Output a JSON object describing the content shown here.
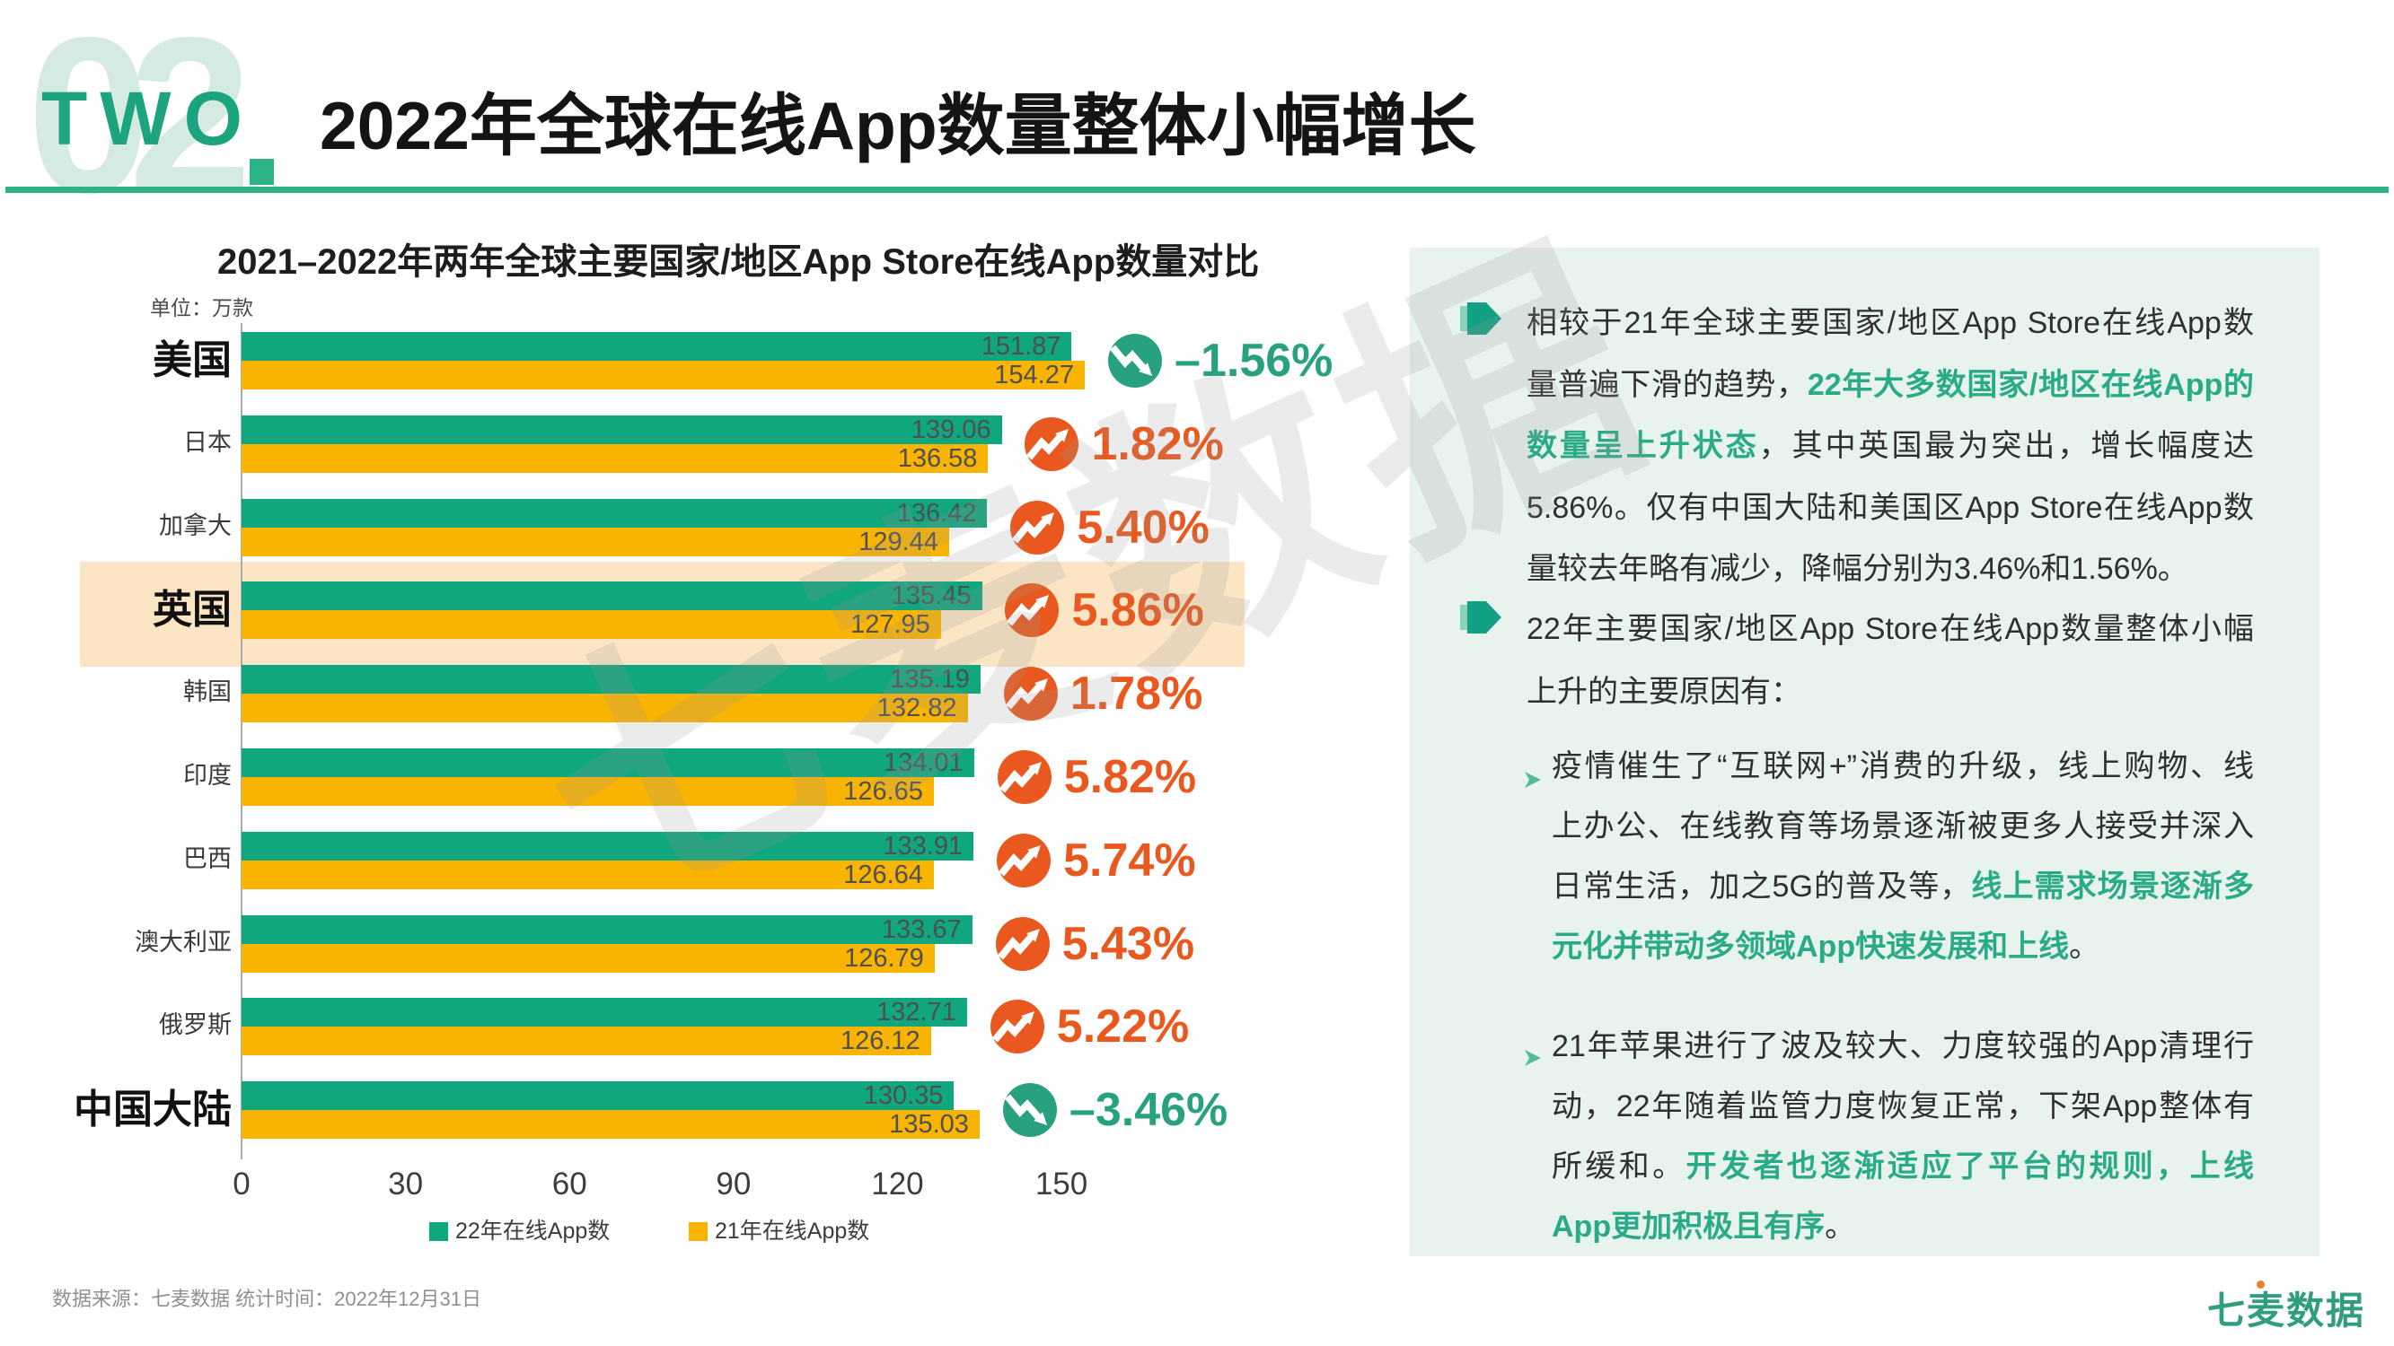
{
  "header": {
    "section_number": "02",
    "section_word": "TWO",
    "title": "2022年全球在线App数量整体小幅增长",
    "accent_color": "#2eb189"
  },
  "watermark": {
    "text": "七麦数据"
  },
  "chart": {
    "title": "2021–2022年两年全球主要国家/地区App Store在线App数量对比",
    "unit_label": "单位：万款",
    "x_ticks": [
      "0",
      "30",
      "60",
      "90",
      "120",
      "150"
    ],
    "legend": [
      {
        "label": "22年在线App数",
        "color": "#10a67e"
      },
      {
        "label": "21年在线App数",
        "color": "#f9b301"
      }
    ],
    "bar_color_2022": "#10a67e",
    "bar_color_2021": "#f9b301",
    "up_color": "#e9591f",
    "down_color": "#28a181",
    "highlight_color": "#fbe5c5",
    "rows": [
      {
        "country": "美国",
        "bold": true,
        "v22": "151.87",
        "v21": "154.27",
        "change": "–1.56%",
        "dir": "down",
        "highlight": false
      },
      {
        "country": "日本",
        "bold": false,
        "v22": "139.06",
        "v21": "136.58",
        "change": "1.82%",
        "dir": "up",
        "highlight": false
      },
      {
        "country": "加拿大",
        "bold": false,
        "v22": "136.42",
        "v21": "129.44",
        "change": "5.40%",
        "dir": "up",
        "highlight": false
      },
      {
        "country": "英国",
        "bold": true,
        "v22": "135.45",
        "v21": "127.95",
        "change": "5.86%",
        "dir": "up",
        "highlight": true
      },
      {
        "country": "韩国",
        "bold": false,
        "v22": "135.19",
        "v21": "132.82",
        "change": "1.78%",
        "dir": "up",
        "highlight": false
      },
      {
        "country": "印度",
        "bold": false,
        "v22": "134.01",
        "v21": "126.65",
        "change": "5.82%",
        "dir": "up",
        "highlight": false
      },
      {
        "country": "巴西",
        "bold": false,
        "v22": "133.91",
        "v21": "126.64",
        "change": "5.74%",
        "dir": "up",
        "highlight": false
      },
      {
        "country": "澳大利亚",
        "bold": false,
        "v22": "133.67",
        "v21": "126.79",
        "change": "5.43%",
        "dir": "up",
        "highlight": false
      },
      {
        "country": "俄罗斯",
        "bold": false,
        "v22": "132.71",
        "v21": "126.12",
        "change": "5.22%",
        "dir": "up",
        "highlight": false
      },
      {
        "country": "中国大陆",
        "bold": true,
        "v22": "130.35",
        "v21": "135.03",
        "change": "–3.46%",
        "dir": "down",
        "highlight": false
      }
    ]
  },
  "chart_data": {
    "type": "bar",
    "orientation": "horizontal",
    "title": "2021–2022年两年全球主要国家/地区App Store在线App数量对比",
    "unit": "万款",
    "categories": [
      "美国",
      "日本",
      "加拿大",
      "英国",
      "韩国",
      "印度",
      "巴西",
      "澳大利亚",
      "俄罗斯",
      "中国大陆"
    ],
    "series": [
      {
        "name": "22年在线App数",
        "color": "#10a67e",
        "values": [
          151.87,
          139.06,
          136.42,
          135.45,
          135.19,
          134.01,
          133.91,
          133.67,
          132.71,
          130.35
        ]
      },
      {
        "name": "21年在线App数",
        "color": "#f9b301",
        "values": [
          154.27,
          136.58,
          129.44,
          127.95,
          132.82,
          126.65,
          126.64,
          126.79,
          126.12,
          135.03
        ]
      }
    ],
    "change_percent": [
      -1.56,
      1.82,
      5.4,
      5.86,
      1.78,
      5.82,
      5.74,
      5.43,
      5.22,
      -3.46
    ],
    "xlabel": "",
    "ylabel": "",
    "xlim": [
      0,
      165
    ],
    "grid": false,
    "legend_position": "bottom",
    "highlighted_category": "英国"
  },
  "panel": {
    "paragraphs": [
      {
        "marker": "flag",
        "lines": [
          [
            {
              "t": "相较于21年全球主要国家/地区App Store在线App数"
            }
          ],
          [
            {
              "t": "量普遍下滑的趋势，"
            },
            {
              "t": "22年大多数国家/地区在线App的",
              "em": true
            }
          ],
          [
            {
              "t": "数量呈上升状态",
              "em": true
            },
            {
              "t": "，其中英国最为突出，增长幅度达"
            }
          ],
          [
            {
              "t": "5.86%。仅有中国大陆和美国区App Store在线App数"
            }
          ],
          [
            {
              "t": "量较去年略有减少，降幅分别为3.46%和1.56%。"
            }
          ]
        ]
      },
      {
        "marker": "flag",
        "lines": [
          [
            {
              "t": "22年主要国家/地区App Store在线App数量整体小幅"
            }
          ],
          [
            {
              "t": "上升的主要原因有："
            }
          ]
        ]
      },
      {
        "marker": "chevron",
        "lines": [
          [
            {
              "t": "疫情催生了“互联网+”消费的升级，线上购物、线"
            }
          ],
          [
            {
              "t": "上办公、在线教育等场景逐渐被更多人接受并深入"
            }
          ],
          [
            {
              "t": "日常生活，加之5G的普及等，"
            },
            {
              "t": "线上需求场景逐渐多",
              "em": true
            }
          ],
          [
            {
              "t": "元化并带动多领域App快速发展和上线",
              "em": true
            },
            {
              "t": "。"
            }
          ]
        ]
      },
      {
        "marker": "chevron",
        "lines": [
          [
            {
              "t": "21年苹果进行了波及较大、力度较强的App清理行"
            }
          ],
          [
            {
              "t": "动，22年随着监管力度恢复正常，下架App整体有"
            }
          ],
          [
            {
              "t": "所缓和。"
            },
            {
              "t": "开发者也逐渐适应了平台的规则，上线",
              "em": true
            }
          ],
          [
            {
              "t": "App更加积极且有序",
              "em": true
            },
            {
              "t": "。"
            }
          ]
        ]
      }
    ]
  },
  "footer": {
    "source_note": "数据来源：七麦数据  统计时间：2022年12月31日",
    "logo_text": "七麦数据"
  }
}
